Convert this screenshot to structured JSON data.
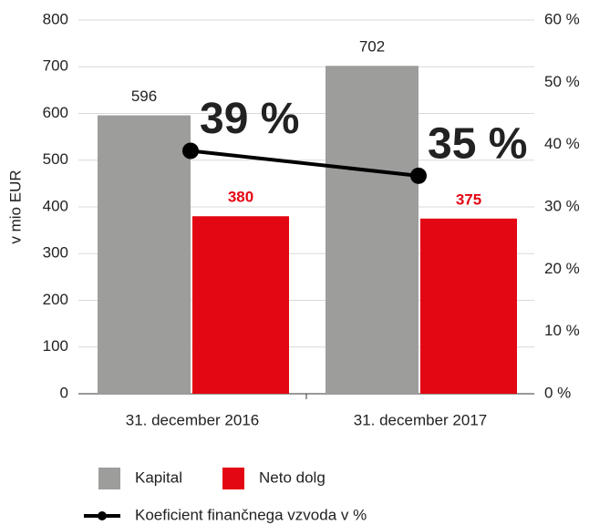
{
  "chart_data": {
    "type": "bar",
    "y_label": "v mio EUR",
    "categories": [
      "31. december 2016",
      "31. december 2017"
    ],
    "series": [
      {
        "name": "Kapital",
        "color": "#9d9d9c",
        "values": [
          596,
          702
        ]
      },
      {
        "name": "Neto dolg",
        "color": "#e30613",
        "values": [
          380,
          375
        ]
      },
      {
        "name": "Koeficient finančnega vzvoda v %",
        "color": "#000000",
        "type": "line",
        "axis": "y2",
        "values": [
          39,
          35
        ],
        "value_labels": [
          "39 %",
          "35 %"
        ]
      }
    ],
    "ylim": [
      0,
      800
    ],
    "yticks": [
      0,
      100,
      200,
      300,
      400,
      500,
      600,
      700,
      800
    ],
    "y2lim": [
      0,
      60
    ],
    "y2ticks": [
      {
        "value": 0,
        "label": "0 %"
      },
      {
        "value": 10,
        "label": "10 %"
      },
      {
        "value": 20,
        "label": "20 %"
      },
      {
        "value": 30,
        "label": "30 %"
      },
      {
        "value": 40,
        "label": "40 %"
      },
      {
        "value": 50,
        "label": "50 %"
      },
      {
        "value": 60,
        "label": "60 %"
      }
    ],
    "grid": true,
    "legend": "bottom"
  }
}
